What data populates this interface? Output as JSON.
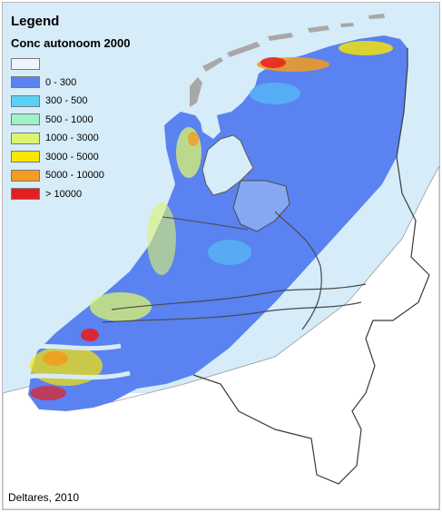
{
  "legend": {
    "title": "Legend",
    "subtitle": "Conc autonoom 2000",
    "classes": [
      {
        "label": "",
        "color": "#eef4fb"
      },
      {
        "label": "0 - 300",
        "color": "#5a82f0"
      },
      {
        "label": "300 - 500",
        "color": "#55d2f5"
      },
      {
        "label": "500 - 1000",
        "color": "#a0f0c8"
      },
      {
        "label": "1000 - 3000",
        "color": "#dcf56e"
      },
      {
        "label": "3000 - 5000",
        "color": "#fae600"
      },
      {
        "label": "5000 - 10000",
        "color": "#f59b1e"
      },
      {
        "label": "> 10000",
        "color": "#e61e1e"
      }
    ]
  },
  "credit": "Deltares, 2010",
  "colors": {
    "sea": "#d6ecf8",
    "island": "#a8a8a8",
    "nodata_land": "#ffffff",
    "boundary": "#4a4a4a"
  }
}
